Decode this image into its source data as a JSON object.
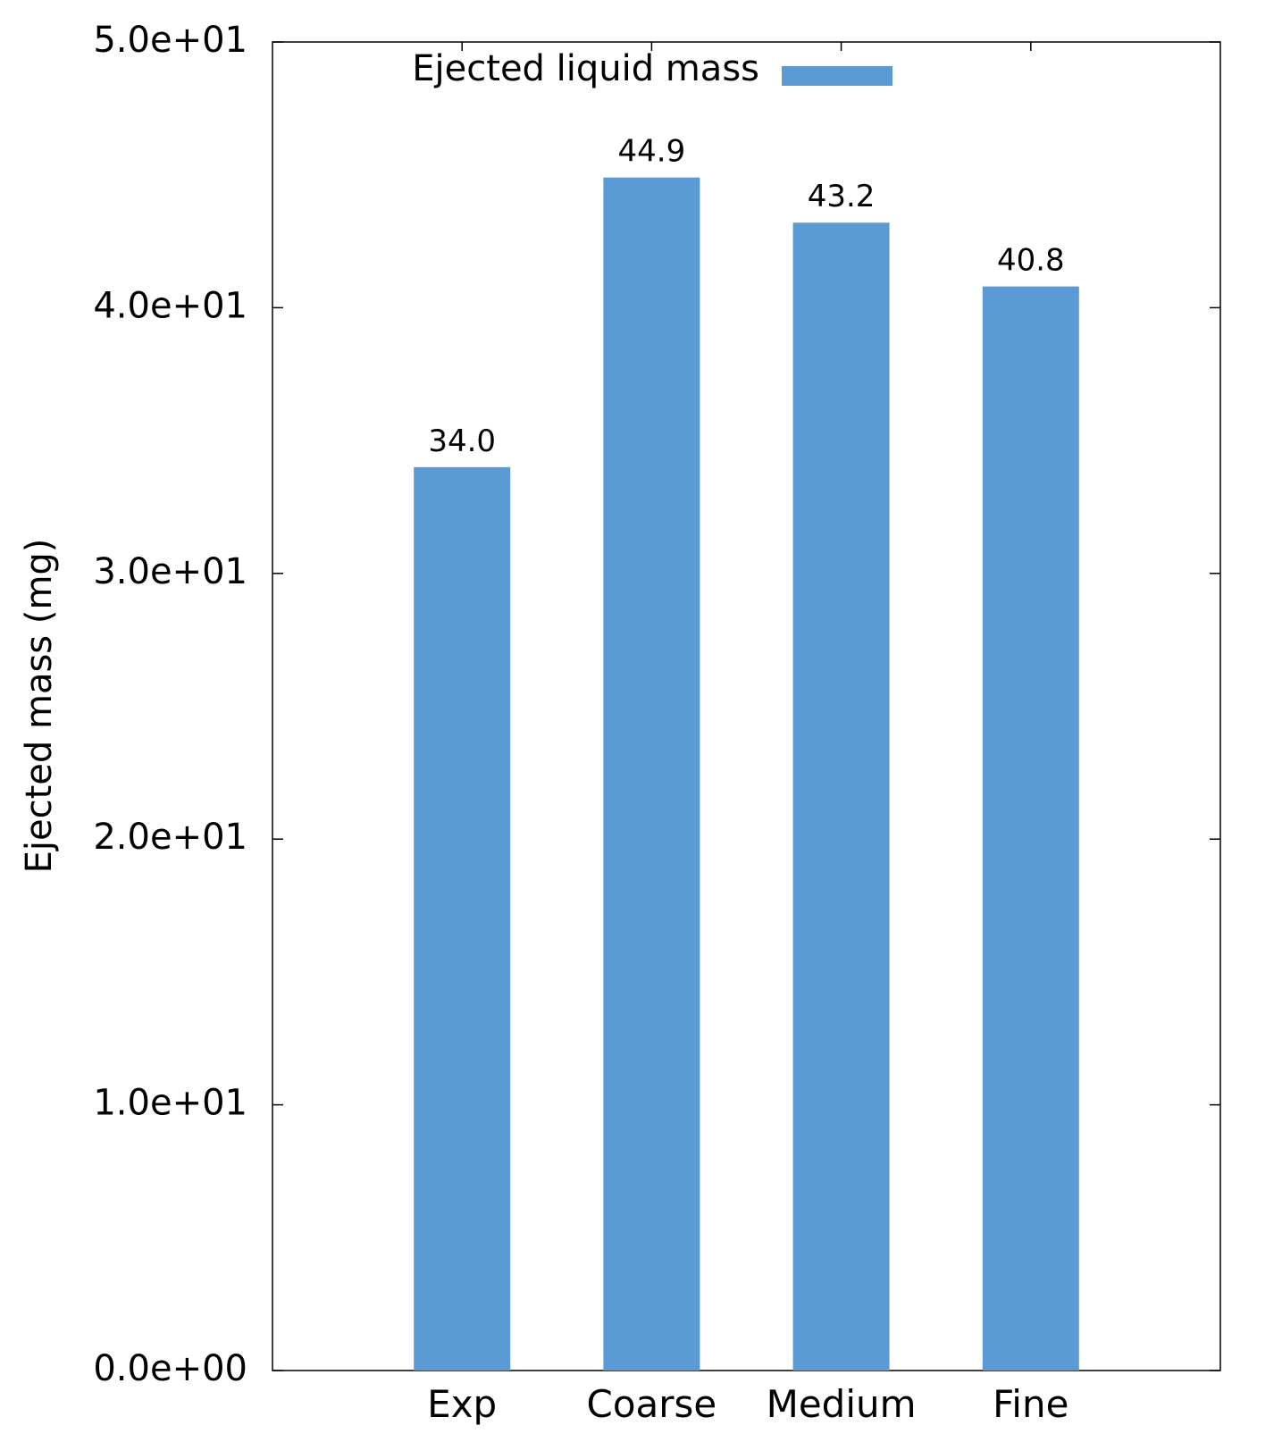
{
  "chart_data": {
    "type": "bar",
    "categories": [
      "Exp",
      "Coarse",
      "Medium",
      "Fine"
    ],
    "series": [
      {
        "name": "Ejected liquid mass",
        "values": [
          34.0,
          44.9,
          43.2,
          40.8
        ],
        "color": "#5b9bd5"
      }
    ],
    "data_labels": [
      "34.0",
      "44.9",
      "43.2",
      "40.8"
    ],
    "ylabel": "Ejected mass (mg)",
    "ylim": [
      0,
      50
    ],
    "yticks": [
      0,
      10,
      20,
      30,
      40,
      50
    ],
    "ytick_labels": [
      "0.0e+00",
      "1.0e+01",
      "2.0e+01",
      "3.0e+01",
      "4.0e+01",
      "5.0e+01"
    ],
    "grid": false,
    "legend_position": "top"
  }
}
